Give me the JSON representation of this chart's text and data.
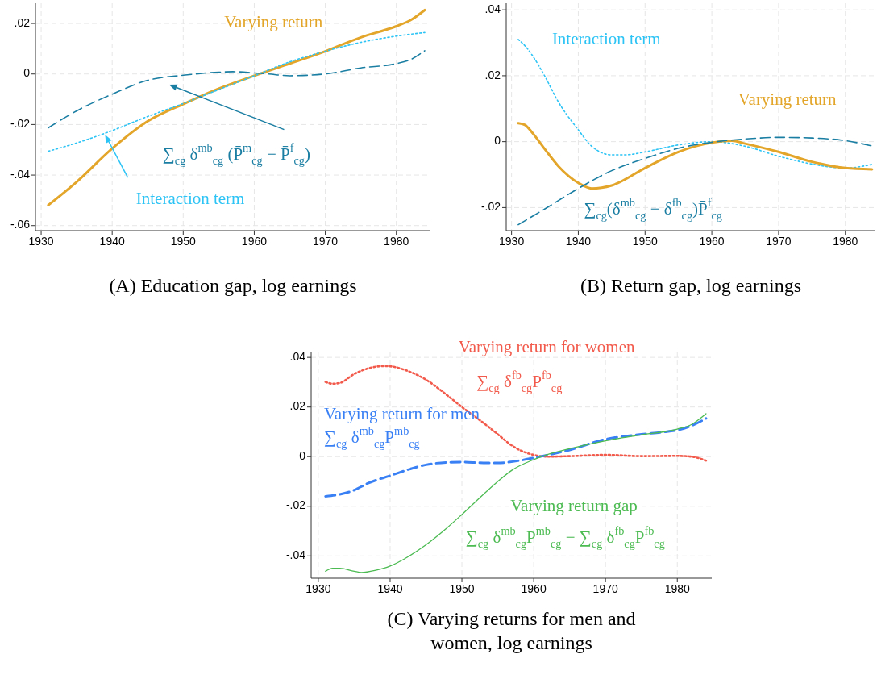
{
  "chart_data": [
    {
      "type": "line",
      "title": "(A) Education gap, log earnings",
      "xlim": [
        1929.2,
        1984.8
      ],
      "ylim": [
        -0.062,
        0.028
      ],
      "xticks": [
        1930,
        1940,
        1950,
        1960,
        1970,
        1980
      ],
      "yticks": [
        {
          "value": -0.06,
          "label": "-.06"
        },
        {
          "value": -0.04,
          "label": "-.04"
        },
        {
          "value": -0.02,
          "label": "-.02"
        },
        {
          "value": 0,
          "label": "0"
        },
        {
          "value": 0.02,
          "label": ".02"
        }
      ],
      "grid": true,
      "legend": false,
      "series": [
        {
          "name": "Varying return",
          "color": "#e3a62a",
          "line_style": "solid",
          "x": [
            1931,
            1935,
            1940,
            1945,
            1950,
            1955,
            1960,
            1965,
            1970,
            1975,
            1980,
            1982,
            1984
          ],
          "values": [
            -0.0519,
            -0.0427,
            -0.0295,
            -0.0187,
            -0.0119,
            -0.0058,
            -0.0007,
            0.0041,
            0.009,
            0.0145,
            0.0189,
            0.0213,
            0.0253
          ]
        },
        {
          "name": "∑$_{cg}$ δ$^{mb}$$_{cg}$ (P̄$^{m}$$_{cg}$ − P̄$^{f}$$_{cg}$)",
          "color": "#1a7ea3",
          "line_style": "dashed",
          "x": [
            1931,
            1935,
            1940,
            1945,
            1950,
            1955,
            1957,
            1960,
            1962,
            1965,
            1970,
            1975,
            1980,
            1982,
            1984
          ],
          "values": [
            -0.0213,
            -0.0146,
            -0.008,
            -0.0025,
            -0.0005,
            0.0007,
            0.0009,
            0.0004,
            0,
            -0.0007,
            0,
            0.0024,
            0.0041,
            0.0057,
            0.0092
          ]
        },
        {
          "name": "Interaction term",
          "color": "#2cc3f5",
          "line_style": "dotted",
          "x": [
            1931,
            1935,
            1940,
            1945,
            1950,
            1955,
            1960,
            1965,
            1970,
            1975,
            1980,
            1984
          ],
          "values": [
            -0.0306,
            -0.0273,
            -0.0224,
            -0.0168,
            -0.0117,
            -0.0062,
            -0.0007,
            0.0048,
            0.009,
            0.0125,
            0.015,
            0.0164
          ]
        }
      ]
    },
    {
      "type": "line",
      "title": "(B) Return gap, log earnings",
      "xlim": [
        1929.2,
        1984.5
      ],
      "ylim": [
        -0.027,
        0.042
      ],
      "xticks": [
        1930,
        1940,
        1950,
        1960,
        1970,
        1980
      ],
      "yticks": [
        {
          "value": -0.02,
          "label": "-.02"
        },
        {
          "value": 0,
          "label": "0"
        },
        {
          "value": 0.02,
          "label": ".02"
        },
        {
          "value": 0.04,
          "label": ".04"
        }
      ],
      "grid": true,
      "legend": false,
      "series": [
        {
          "name": "Interaction term",
          "color": "#2cc3f5",
          "line_style": "dotted",
          "x": [
            1931,
            1932,
            1933,
            1935,
            1937,
            1940,
            1942,
            1945,
            1947,
            1950,
            1955,
            1960,
            1965,
            1970,
            1975,
            1980,
            1984
          ],
          "values": [
            0.031,
            0.0291,
            0.0265,
            0.0198,
            0.0121,
            0.0036,
            -0.0014,
            -0.004,
            -0.004,
            -0.0031,
            -0.001,
            0,
            -0.0014,
            -0.0044,
            -0.0068,
            -0.008,
            -0.0069
          ]
        },
        {
          "name": "Varying return",
          "color": "#e3a62a",
          "line_style": "solid",
          "x": [
            1931,
            1932,
            1933,
            1935,
            1937,
            1940,
            1942,
            1945,
            1950,
            1955,
            1960,
            1963,
            1965,
            1970,
            1975,
            1980,
            1984
          ],
          "values": [
            0.0056,
            0.0051,
            0.003,
            -0.0023,
            -0.0074,
            -0.0125,
            -0.0142,
            -0.0133,
            -0.008,
            -0.0031,
            -0.0003,
            0.0003,
            -0.0006,
            -0.0031,
            -0.0061,
            -0.008,
            -0.0084
          ]
        },
        {
          "name": "∑$_{cg}$(δ$^{mb}$$_{cg}$ − δ$^{fb}$$_{cg}$)P̄$^{f}$$_{cg}$",
          "color": "#1a7ea3",
          "line_style": "dashed",
          "x": [
            1931,
            1935,
            1940,
            1945,
            1950,
            1955,
            1960,
            1965,
            1970,
            1975,
            1980,
            1984
          ],
          "values": [
            -0.0252,
            -0.0204,
            -0.0142,
            -0.0088,
            -0.0051,
            -0.002,
            -0.0002,
            0.0008,
            0.0013,
            0.0011,
            0.0003,
            -0.0013
          ]
        }
      ]
    },
    {
      "type": "line",
      "title": "(C) Varying returns for men and women, log earnings",
      "xlim": [
        1929,
        1984.8
      ],
      "ylim": [
        -0.049,
        0.042
      ],
      "xticks": [
        1930,
        1940,
        1950,
        1960,
        1970,
        1980
      ],
      "yticks": [
        {
          "value": -0.04,
          "label": "-.04"
        },
        {
          "value": -0.02,
          "label": "-.02"
        },
        {
          "value": 0,
          "label": "0"
        },
        {
          "value": 0.02,
          "label": ".02"
        },
        {
          "value": 0.04,
          "label": ".04"
        }
      ],
      "grid": true,
      "legend": false,
      "series": [
        {
          "name": "Varying return for women\n∑$_{cg}$ δ$^{fb}$$_{cg}$P$^{fb}$$_{cg}$",
          "color": "#f25a4b",
          "line_style": "dotted",
          "x": [
            1931,
            1932,
            1933,
            1935,
            1937,
            1939,
            1940,
            1942,
            1945,
            1948,
            1950,
            1953,
            1955,
            1957,
            1959,
            1960,
            1962,
            1965,
            1970,
            1975,
            1980,
            1982,
            1984
          ],
          "values": [
            0.0301,
            0.0294,
            0.0297,
            0.0333,
            0.0356,
            0.0365,
            0.0364,
            0.035,
            0.031,
            0.0246,
            0.02,
            0.0136,
            0.009,
            0.0044,
            0.0015,
            0.0007,
            0,
            0.0002,
            0.0007,
            0.0002,
            0.0003,
            0,
            -0.0016
          ]
        },
        {
          "name": "Varying return for men\n∑$_{cg}$ δ$^{mb}$$_{cg}$P$^{mb}$$_{cg}$",
          "color": "#3a80f5",
          "line_style": "dashed",
          "x": [
            1931,
            1933,
            1935,
            1937,
            1940,
            1943,
            1945,
            1948,
            1950,
            1953,
            1955,
            1958,
            1960,
            1962,
            1965,
            1970,
            1975,
            1978,
            1980,
            1982,
            1984
          ],
          "values": [
            -0.016,
            -0.0152,
            -0.0135,
            -0.0106,
            -0.0077,
            -0.0048,
            -0.0033,
            -0.0023,
            -0.0022,
            -0.0025,
            -0.0025,
            -0.0016,
            -0.0005,
            0.0007,
            0.0027,
            0.007,
            0.009,
            0.0099,
            0.0107,
            0.0125,
            0.0154
          ]
        },
        {
          "name": "Varying return gap\n∑$_{cg}$ δ$^{mb}$$_{cg}$P$^{mb}$$_{cg}$ − ∑$_{cg}$ δ$^{fb}$$_{cg}$P$^{fb}$$_{cg}$",
          "color": "#4cbb52",
          "line_style": "solid",
          "x": [
            1931,
            1932,
            1933,
            1935,
            1936,
            1938,
            1940,
            1942,
            1945,
            1948,
            1950,
            1953,
            1955,
            1957,
            1960,
            1962,
            1965,
            1970,
            1975,
            1980,
            1982,
            1984
          ],
          "values": [
            -0.0462,
            -0.045,
            -0.045,
            -0.0462,
            -0.0467,
            -0.0458,
            -0.0441,
            -0.0412,
            -0.0355,
            -0.0285,
            -0.0233,
            -0.0152,
            -0.01,
            -0.0054,
            -0.0012,
            0.0009,
            0.0032,
            0.0064,
            0.0088,
            0.0111,
            0.013,
            0.0173
          ]
        }
      ]
    }
  ]
}
